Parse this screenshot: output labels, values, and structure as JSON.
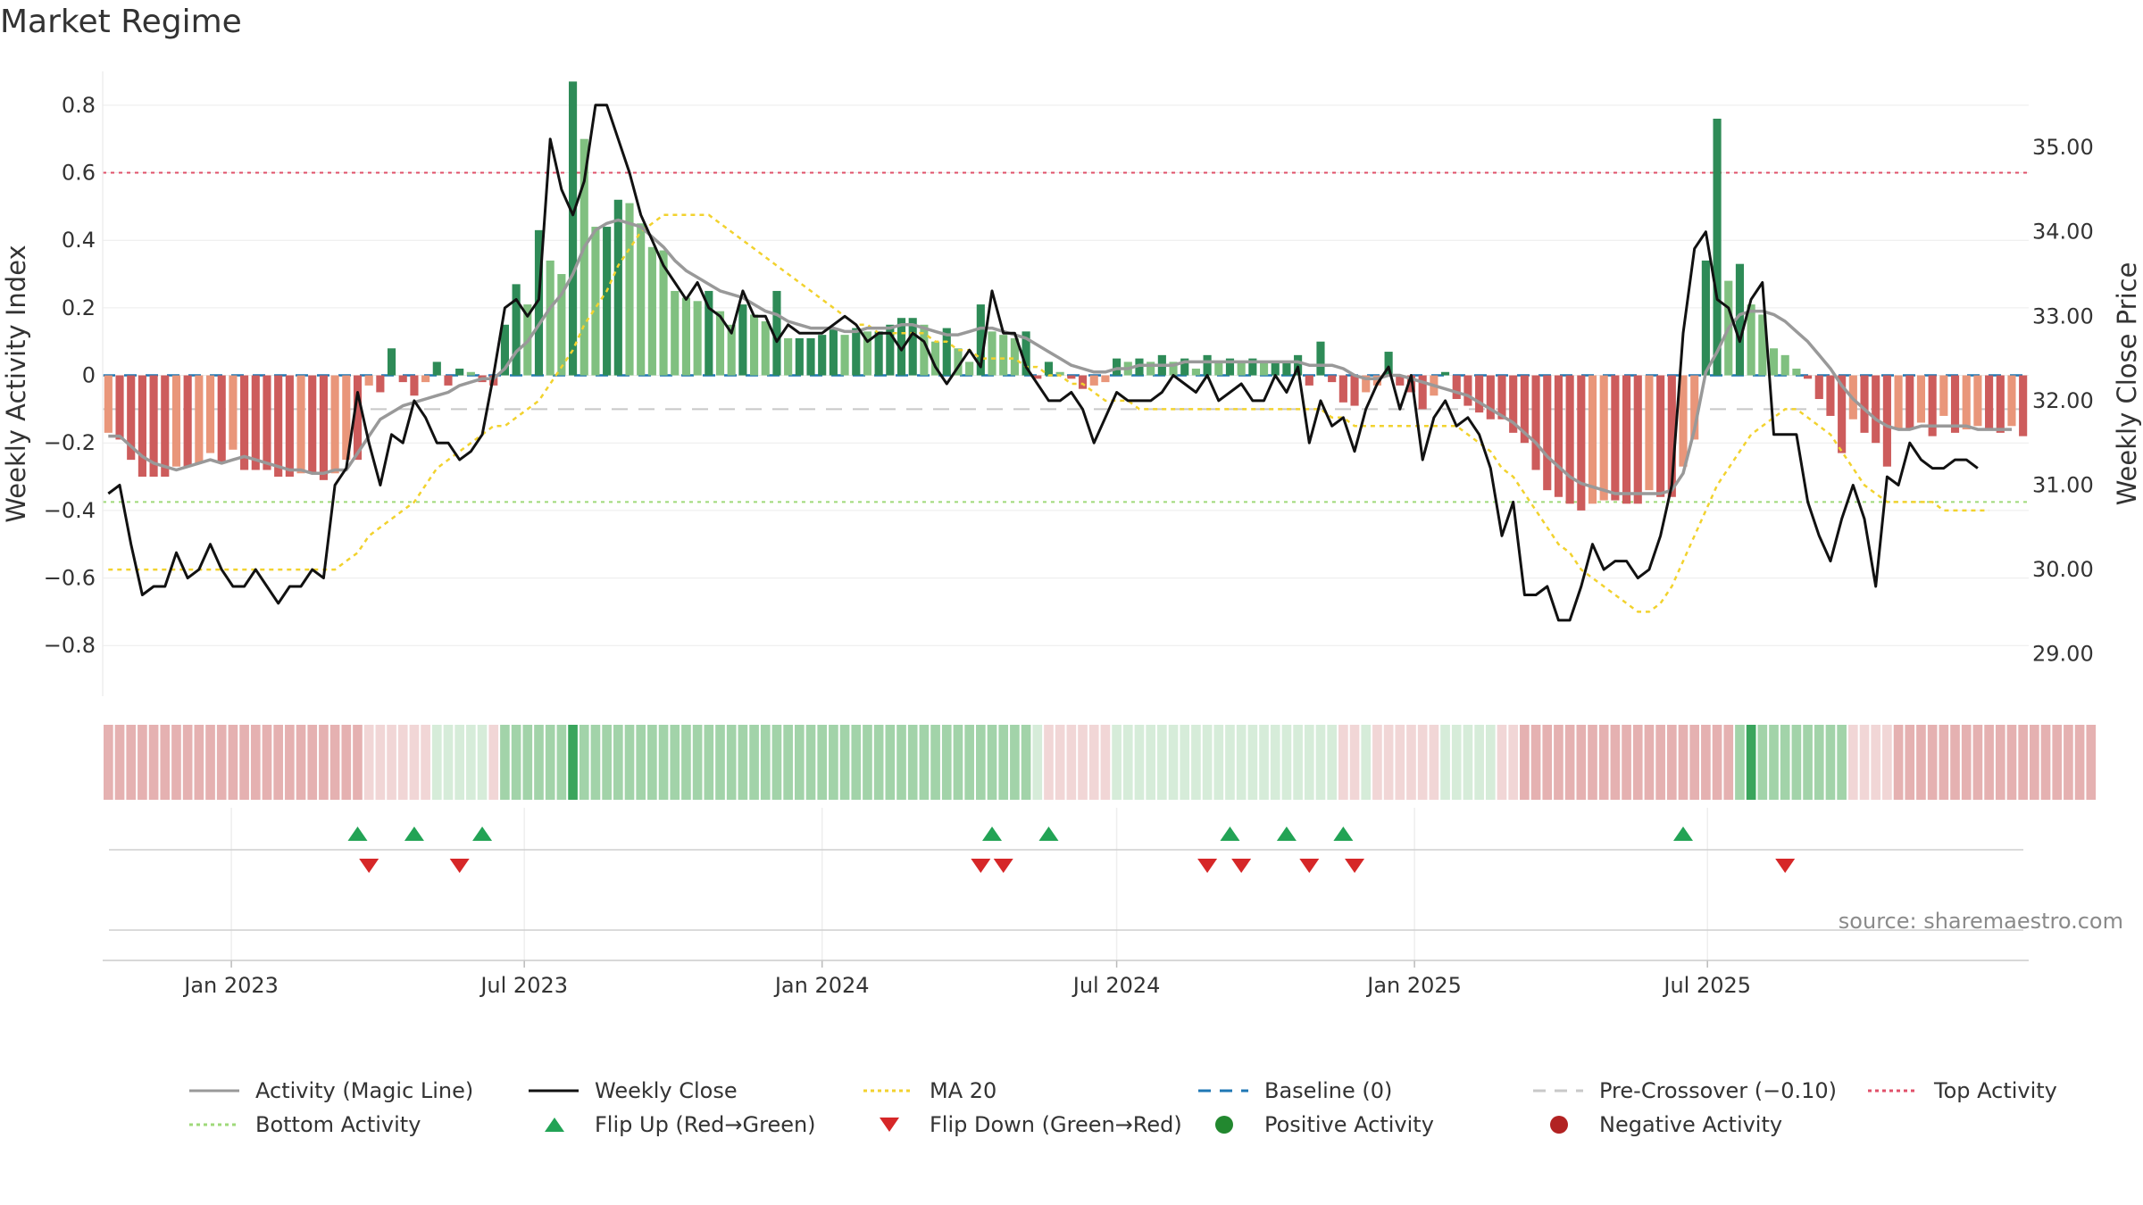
{
  "title": "Market Regime",
  "source": "source: sharemaestro.com",
  "colors": {
    "magic_line": "#999999",
    "close": "#111111",
    "ma20": "#f2d22e",
    "baseline": "#1f77b4",
    "pre_crossover": "#c8c8c8",
    "top": "#e0506a",
    "bottom": "#9fd97a",
    "pos_strong": "#2e8b57",
    "pos_light": "#80c080",
    "neg_strong": "#cd5c5c",
    "neg_light": "#e9967a",
    "flip_up": "#22a355",
    "flip_down": "#d62728"
  },
  "legend": [
    {
      "label": "Activity (Magic Line)",
      "kind": "line",
      "color": "#999999",
      "dash": ""
    },
    {
      "label": "Weekly Close",
      "kind": "line",
      "color": "#111111",
      "dash": ""
    },
    {
      "label": "MA 20",
      "kind": "line",
      "color": "#f2d22e",
      "dash": "4,4"
    },
    {
      "label": "Baseline (0)",
      "kind": "line",
      "color": "#1f77b4",
      "dash": "14,10"
    },
    {
      "label": "Pre-Crossover (−0.10)",
      "kind": "line",
      "color": "#c8c8c8",
      "dash": "14,10"
    },
    {
      "label": "Top Activity",
      "kind": "line",
      "color": "#e0506a",
      "dash": "4,4"
    },
    {
      "label": "Bottom Activity",
      "kind": "line",
      "color": "#9fd97a",
      "dash": "4,4"
    },
    {
      "label": "Flip Up (Red→Green)",
      "kind": "up",
      "color": "#22a355",
      "dash": ""
    },
    {
      "label": "Flip Down (Green→Red)",
      "kind": "down",
      "color": "#d62728",
      "dash": ""
    },
    {
      "label": "Positive Activity",
      "kind": "dot",
      "color": "#22882f",
      "dash": ""
    },
    {
      "label": "Negative Activity",
      "kind": "dot",
      "color": "#b22222",
      "dash": ""
    }
  ],
  "chart_data": {
    "type": "bar",
    "ylabel": "Weekly Activity Index",
    "y2label": "Weekly Close Price",
    "ylim": [
      -0.95,
      0.9
    ],
    "y2lim": [
      28.5,
      35.9
    ],
    "yticks": [
      "−0.8",
      "−0.6",
      "−0.4",
      "−0.2",
      "0",
      "0.2",
      "0.4",
      "0.6",
      "0.8"
    ],
    "y2ticks": [
      "29.00",
      "30.00",
      "31.00",
      "32.00",
      "33.00",
      "34.00",
      "35.00"
    ],
    "x_start": "2022-10-17",
    "x_step_days": 7,
    "xticks": [
      {
        "label": "Jan 2023",
        "date": "2023-01-01"
      },
      {
        "label": "Jul 2023",
        "date": "2023-07-01"
      },
      {
        "label": "Jan 2024",
        "date": "2024-01-01"
      },
      {
        "label": "Jul 2024",
        "date": "2024-07-01"
      },
      {
        "label": "Jan 2025",
        "date": "2025-01-01"
      },
      {
        "label": "Jul 2025",
        "date": "2025-07-01"
      }
    ],
    "reference_lines": {
      "top": 0.6,
      "bottom": -0.375,
      "baseline": 0,
      "pre_crossover": -0.1
    },
    "series": [
      {
        "name": "Weekly Activity Index",
        "kind": "bar",
        "values": [
          -0.17,
          -0.19,
          -0.25,
          -0.3,
          -0.3,
          -0.3,
          -0.27,
          -0.27,
          -0.26,
          -0.23,
          -0.26,
          -0.22,
          -0.28,
          -0.28,
          -0.28,
          -0.3,
          -0.3,
          -0.29,
          -0.29,
          -0.31,
          -0.29,
          -0.25,
          -0.25,
          -0.03,
          -0.05,
          0.08,
          -0.02,
          -0.06,
          -0.02,
          0.04,
          -0.03,
          0.02,
          0.01,
          -0.02,
          -0.03,
          0.15,
          0.27,
          0.21,
          0.43,
          0.34,
          0.3,
          0.87,
          0.7,
          0.44,
          0.44,
          0.52,
          0.51,
          0.45,
          0.38,
          0.37,
          0.25,
          0.23,
          0.22,
          0.25,
          0.19,
          0.15,
          0.21,
          0.18,
          0.16,
          0.25,
          0.11,
          0.11,
          0.11,
          0.12,
          0.14,
          0.12,
          0.14,
          0.13,
          0.13,
          0.15,
          0.17,
          0.17,
          0.15,
          0.1,
          0.14,
          0.08,
          0.04,
          0.21,
          0.13,
          0.12,
          0.11,
          0.13,
          -0.01,
          0.04,
          0.01,
          -0.01,
          -0.04,
          -0.03,
          -0.02,
          0.05,
          0.04,
          0.05,
          0.04,
          0.06,
          0.04,
          0.05,
          0.02,
          0.06,
          0.04,
          0.05,
          0.04,
          0.05,
          0.04,
          0.04,
          0.04,
          0.06,
          -0.03,
          0.1,
          -0.02,
          -0.08,
          -0.09,
          -0.05,
          -0.03,
          0.07,
          -0.03,
          -0.05,
          -0.1,
          -0.06,
          0.01,
          -0.07,
          -0.09,
          -0.11,
          -0.13,
          -0.13,
          -0.17,
          -0.2,
          -0.28,
          -0.34,
          -0.36,
          -0.38,
          -0.4,
          -0.38,
          -0.37,
          -0.37,
          -0.38,
          -0.38,
          -0.34,
          -0.36,
          -0.36,
          -0.27,
          -0.19,
          0.34,
          0.76,
          0.28,
          0.33,
          0.21,
          0.18,
          0.08,
          0.06,
          0.02,
          -0.01,
          -0.07,
          -0.12,
          -0.23,
          -0.13,
          -0.17,
          -0.2,
          -0.27,
          -0.16,
          -0.16,
          -0.14,
          -0.18,
          -0.12,
          -0.17,
          -0.16,
          -0.15,
          -0.16,
          -0.17,
          -0.15,
          -0.18
        ]
      },
      {
        "name": "Activity (Magic Line)",
        "kind": "line",
        "axis": "left",
        "values": [
          -0.18,
          -0.18,
          -0.21,
          -0.24,
          -0.26,
          -0.27,
          -0.28,
          -0.27,
          -0.26,
          -0.25,
          -0.26,
          -0.25,
          -0.24,
          -0.25,
          -0.26,
          -0.27,
          -0.28,
          -0.28,
          -0.29,
          -0.29,
          -0.28,
          -0.28,
          -0.23,
          -0.18,
          -0.13,
          -0.11,
          -0.09,
          -0.08,
          -0.07,
          -0.06,
          -0.05,
          -0.03,
          -0.02,
          -0.01,
          -0.01,
          0.02,
          0.07,
          0.1,
          0.15,
          0.2,
          0.24,
          0.3,
          0.38,
          0.43,
          0.45,
          0.46,
          0.45,
          0.44,
          0.41,
          0.38,
          0.34,
          0.31,
          0.29,
          0.27,
          0.25,
          0.24,
          0.23,
          0.21,
          0.19,
          0.18,
          0.16,
          0.15,
          0.14,
          0.14,
          0.14,
          0.13,
          0.13,
          0.14,
          0.14,
          0.14,
          0.15,
          0.15,
          0.14,
          0.13,
          0.12,
          0.12,
          0.13,
          0.14,
          0.14,
          0.13,
          0.12,
          0.11,
          0.09,
          0.07,
          0.05,
          0.03,
          0.02,
          0.01,
          0.01,
          0.02,
          0.02,
          0.03,
          0.03,
          0.03,
          0.03,
          0.04,
          0.04,
          0.04,
          0.04,
          0.04,
          0.04,
          0.04,
          0.04,
          0.04,
          0.04,
          0.04,
          0.03,
          0.03,
          0.03,
          0.02,
          0.0,
          -0.01,
          -0.01,
          0.0,
          0.0,
          -0.01,
          -0.02,
          -0.03,
          -0.04,
          -0.05,
          -0.06,
          -0.08,
          -0.1,
          -0.12,
          -0.14,
          -0.17,
          -0.2,
          -0.24,
          -0.27,
          -0.3,
          -0.32,
          -0.33,
          -0.34,
          -0.35,
          -0.35,
          -0.35,
          -0.35,
          -0.35,
          -0.34,
          -0.29,
          -0.16,
          0.01,
          0.07,
          0.14,
          0.18,
          0.19,
          0.19,
          0.18,
          0.16,
          0.13,
          0.1,
          0.06,
          0.02,
          -0.03,
          -0.07,
          -0.1,
          -0.13,
          -0.15,
          -0.16,
          -0.16,
          -0.15,
          -0.15,
          -0.15,
          -0.15,
          -0.15,
          -0.16,
          -0.16,
          -0.16,
          -0.16
        ]
      },
      {
        "name": "Weekly Close",
        "kind": "line",
        "axis": "right",
        "values": [
          30.9,
          31.0,
          30.3,
          29.7,
          29.8,
          29.8,
          30.2,
          29.9,
          30.0,
          30.3,
          30.0,
          29.8,
          29.8,
          30.0,
          29.8,
          29.6,
          29.8,
          29.8,
          30.0,
          29.9,
          31.0,
          31.2,
          32.1,
          31.5,
          31.0,
          31.6,
          31.5,
          32.0,
          31.8,
          31.5,
          31.5,
          31.3,
          31.4,
          31.6,
          32.3,
          33.1,
          33.2,
          33.0,
          33.2,
          35.1,
          34.5,
          34.2,
          34.6,
          35.5,
          35.5,
          35.1,
          34.7,
          34.2,
          33.9,
          33.6,
          33.4,
          33.2,
          33.4,
          33.1,
          33.0,
          32.8,
          33.3,
          33.0,
          33.0,
          32.7,
          32.9,
          32.8,
          32.8,
          32.8,
          32.9,
          33.0,
          32.9,
          32.7,
          32.8,
          32.8,
          32.6,
          32.8,
          32.7,
          32.4,
          32.2,
          32.4,
          32.6,
          32.4,
          33.3,
          32.8,
          32.8,
          32.4,
          32.2,
          32.0,
          32.0,
          32.1,
          31.9,
          31.5,
          31.8,
          32.1,
          32.0,
          32.0,
          32.0,
          32.1,
          32.3,
          32.2,
          32.1,
          32.3,
          32.0,
          32.1,
          32.2,
          32.0,
          32.0,
          32.3,
          32.1,
          32.4,
          31.5,
          32.0,
          31.7,
          31.8,
          31.4,
          31.9,
          32.2,
          32.4,
          31.9,
          32.3,
          31.3,
          31.8,
          32.0,
          31.7,
          31.8,
          31.6,
          31.2,
          30.4,
          30.8,
          29.7,
          29.7,
          29.8,
          29.4,
          29.4,
          29.8,
          30.3,
          30.0,
          30.1,
          30.1,
          29.9,
          30.0,
          30.4,
          31.0,
          32.8,
          33.8,
          34.0,
          33.2,
          33.1,
          32.7,
          33.2,
          33.4,
          31.6,
          31.6,
          31.6,
          30.8,
          30.4,
          30.1,
          30.6,
          31.0,
          30.6,
          29.8,
          31.1,
          31.0,
          31.5,
          31.3,
          31.2,
          31.2,
          31.3,
          31.3,
          31.2
        ]
      },
      {
        "name": "MA 20",
        "kind": "line",
        "axis": "right",
        "values": [
          30.0,
          30.0,
          30.0,
          30.0,
          30.0,
          30.0,
          30.0,
          30.0,
          30.0,
          30.0,
          30.0,
          30.0,
          30.0,
          30.0,
          30.0,
          30.0,
          30.0,
          30.0,
          30.0,
          30.0,
          30.0,
          30.1,
          30.2,
          30.4,
          30.5,
          30.6,
          30.7,
          30.8,
          31.0,
          31.2,
          31.3,
          31.4,
          31.5,
          31.6,
          31.7,
          31.7,
          31.8,
          31.9,
          32.0,
          32.2,
          32.4,
          32.6,
          32.9,
          33.1,
          33.3,
          33.6,
          33.8,
          34.0,
          34.1,
          34.2,
          34.2,
          34.2,
          34.2,
          34.2,
          34.1,
          34.0,
          33.9,
          33.8,
          33.7,
          33.6,
          33.5,
          33.4,
          33.3,
          33.2,
          33.1,
          33.0,
          32.9,
          32.9,
          32.8,
          32.8,
          32.8,
          32.8,
          32.8,
          32.7,
          32.7,
          32.6,
          32.6,
          32.5,
          32.5,
          32.5,
          32.5,
          32.4,
          32.4,
          32.3,
          32.3,
          32.2,
          32.2,
          32.1,
          32.0,
          32.0,
          32.0,
          31.9,
          31.9,
          31.9,
          31.9,
          31.9,
          31.9,
          31.9,
          31.9,
          31.9,
          31.9,
          31.9,
          31.9,
          31.9,
          31.9,
          31.9,
          31.9,
          31.9,
          31.8,
          31.8,
          31.7,
          31.7,
          31.7,
          31.7,
          31.7,
          31.7,
          31.7,
          31.7,
          31.7,
          31.7,
          31.6,
          31.5,
          31.4,
          31.2,
          31.1,
          30.9,
          30.7,
          30.5,
          30.3,
          30.2,
          30.0,
          29.9,
          29.8,
          29.7,
          29.6,
          29.5,
          29.5,
          29.6,
          29.8,
          30.1,
          30.4,
          30.7,
          31.0,
          31.2,
          31.4,
          31.6,
          31.7,
          31.8,
          31.9,
          31.9,
          31.8,
          31.7,
          31.6,
          31.4,
          31.2,
          31.0,
          30.9,
          30.8,
          30.8,
          30.8,
          30.8,
          30.8,
          30.7,
          30.7,
          30.7,
          30.7,
          30.7
        ]
      }
    ],
    "regime_strip": {
      "levels": [
        -1,
        -1,
        -1,
        -1,
        -1,
        -1,
        -1,
        -1,
        -1,
        -1,
        -1,
        -1,
        -1,
        -1,
        -1,
        -1,
        -1,
        -1,
        -1,
        -1,
        -1,
        -1,
        -1,
        0,
        0,
        0,
        0,
        0,
        0,
        1,
        1,
        1,
        1,
        1,
        0,
        2,
        2,
        2,
        2,
        2,
        2,
        3,
        2,
        2,
        2,
        2,
        2,
        2,
        2,
        2,
        2,
        2,
        2,
        2,
        2,
        2,
        2,
        2,
        2,
        2,
        2,
        2,
        2,
        2,
        2,
        2,
        2,
        2,
        2,
        2,
        2,
        2,
        2,
        2,
        2,
        2,
        2,
        2,
        2,
        2,
        2,
        2,
        1,
        0,
        0,
        0,
        0,
        0,
        0,
        1,
        1,
        1,
        1,
        1,
        1,
        1,
        1,
        1,
        1,
        1,
        1,
        1,
        1,
        1,
        1,
        1,
        1,
        1,
        1,
        0,
        0,
        1,
        0,
        0,
        0,
        0,
        0,
        0,
        1,
        1,
        1,
        1,
        1,
        0,
        0,
        -1,
        -1,
        -1,
        -1,
        -1,
        -1,
        -1,
        -1,
        -1,
        -1,
        -1,
        -1,
        -1,
        -1,
        -1,
        -1,
        -1,
        -1,
        -1,
        2,
        3,
        2,
        2,
        2,
        2,
        2,
        2,
        2,
        2,
        0,
        0,
        0,
        0,
        -1,
        -1,
        -1,
        -1,
        -1,
        -1,
        -1,
        -1,
        -1,
        -1,
        -1,
        -1,
        -1,
        -1,
        -1,
        -1,
        -1,
        -1
      ]
    },
    "flip_up_weeks": [
      22,
      27,
      33,
      78,
      83,
      99,
      104,
      109,
      139
    ],
    "flip_down_weeks": [
      23,
      31,
      77,
      79,
      97,
      100,
      106,
      110,
      148
    ]
  }
}
